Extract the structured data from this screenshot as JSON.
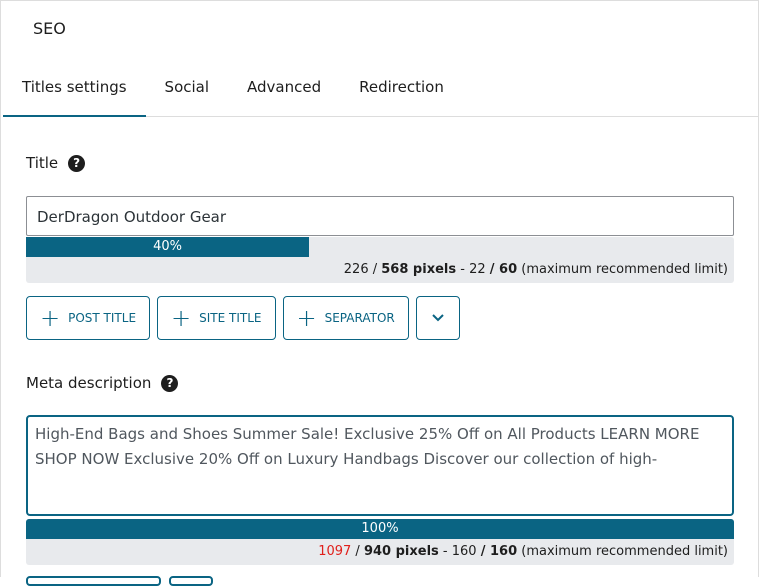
{
  "header": {
    "title": "SEO"
  },
  "tabs": [
    {
      "label": "Titles settings",
      "active": true
    },
    {
      "label": "Social"
    },
    {
      "label": "Advanced"
    },
    {
      "label": "Redirection"
    }
  ],
  "title_field": {
    "label": "Title",
    "value": "DerDragon Outdoor Gear",
    "progress_percent": 40,
    "progress_label": "40%",
    "pixels": "226",
    "pixels_max": "568 pixels",
    "chars": "22",
    "chars_max": "60",
    "limit_note": "(maximum recommended limit)"
  },
  "buttons": {
    "post_title": "POST TITLE",
    "site_title": "SITE TITLE",
    "separator": "SEPARATOR"
  },
  "meta": {
    "label": "Meta description",
    "value": "High-End Bags and Shoes Summer Sale! Exclusive 25% Off on All Products LEARN MORE SHOP NOW Exclusive 20% Off on Luxury Handbags Discover our collection of high-",
    "progress_percent": 100,
    "progress_label": "100%",
    "pixels": "1097",
    "pixels_color": "#e0201b",
    "pixels_max": "940 pixels",
    "chars": "160",
    "chars_max": "160",
    "limit_note": "(maximum recommended limit)"
  },
  "colors": {
    "accent": "#0a6483",
    "meter_bg": "#e8eaed"
  }
}
